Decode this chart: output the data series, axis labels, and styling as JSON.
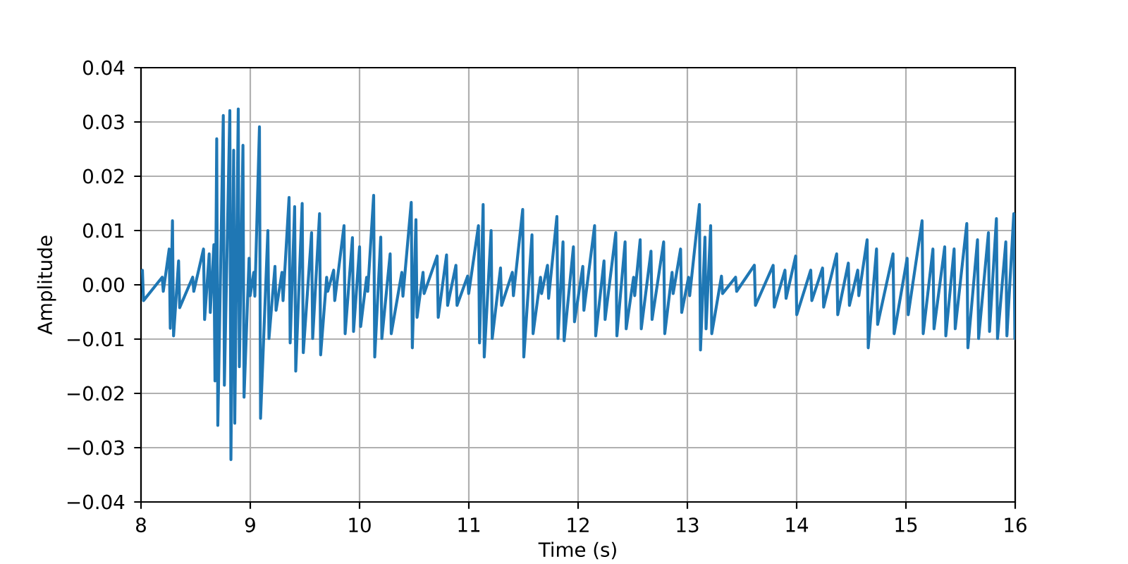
{
  "chart_data": {
    "type": "line",
    "xlabel": "Time (s)",
    "ylabel": "Amplitude",
    "color": "#1f77b4",
    "marker": "none",
    "line_style": "solid",
    "grid": true,
    "xlim": [
      8,
      16
    ],
    "ylim": [
      -0.04,
      0.04
    ],
    "xticks": [
      8,
      9,
      10,
      11,
      12,
      13,
      14,
      15,
      16
    ],
    "yticks": [
      {
        "value": -0.04,
        "label": "−0.04"
      },
      {
        "value": -0.03,
        "label": "−0.03"
      },
      {
        "value": -0.02,
        "label": "−0.02"
      },
      {
        "value": -0.01,
        "label": "−0.01"
      },
      {
        "value": 0,
        "label": "0.00"
      },
      {
        "value": 0.01,
        "label": "0.01"
      },
      {
        "value": 0.02,
        "label": "0.02"
      },
      {
        "value": 0.03,
        "label": "0.03"
      },
      {
        "value": 0.04,
        "label": "0.04"
      }
    ],
    "x": [
      8.013,
      8.023,
      8.194,
      8.204,
      8.258,
      8.268,
      8.288,
      8.298,
      8.344,
      8.354,
      8.473,
      8.483,
      8.572,
      8.582,
      8.624,
      8.634,
      8.667,
      8.677,
      8.693,
      8.703,
      8.753,
      8.763,
      8.813,
      8.823,
      8.848,
      8.858,
      8.89,
      8.9,
      8.933,
      8.943,
      8.989,
      8.999,
      9.032,
      9.042,
      9.084,
      9.094,
      9.161,
      9.171,
      9.226,
      9.236,
      9.29,
      9.3,
      9.355,
      9.365,
      9.406,
      9.416,
      9.475,
      9.485,
      9.561,
      9.571,
      9.634,
      9.644,
      9.699,
      9.709,
      9.763,
      9.773,
      9.858,
      9.868,
      9.935,
      9.945,
      10.0,
      10.01,
      10.065,
      10.075,
      10.129,
      10.139,
      10.194,
      10.204,
      10.28,
      10.29,
      10.387,
      10.397,
      10.473,
      10.483,
      10.516,
      10.526,
      10.581,
      10.591,
      10.71,
      10.72,
      10.796,
      10.806,
      10.882,
      10.892,
      10.989,
      10.999,
      11.088,
      11.098,
      11.131,
      11.141,
      11.204,
      11.214,
      11.29,
      11.3,
      11.398,
      11.408,
      11.493,
      11.503,
      11.578,
      11.588,
      11.656,
      11.666,
      11.72,
      11.73,
      11.806,
      11.816,
      11.862,
      11.872,
      11.957,
      11.967,
      12.043,
      12.053,
      12.151,
      12.161,
      12.237,
      12.247,
      12.345,
      12.355,
      12.43,
      12.44,
      12.508,
      12.518,
      12.568,
      12.578,
      12.667,
      12.677,
      12.783,
      12.793,
      12.86,
      12.87,
      12.938,
      12.948,
      13.011,
      13.021,
      13.11,
      13.12,
      13.161,
      13.171,
      13.213,
      13.223,
      13.312,
      13.322,
      13.441,
      13.451,
      13.613,
      13.623,
      13.785,
      13.795,
      13.893,
      13.903,
      13.991,
      14.001,
      14.129,
      14.139,
      14.237,
      14.247,
      14.366,
      14.376,
      14.473,
      14.483,
      14.559,
      14.569,
      14.645,
      14.655,
      14.731,
      14.741,
      14.882,
      14.892,
      15.011,
      15.021,
      15.148,
      15.158,
      15.247,
      15.257,
      15.355,
      15.365,
      15.441,
      15.451,
      15.557,
      15.567,
      15.655,
      15.665,
      15.755,
      15.765,
      15.828,
      15.838,
      15.914,
      15.924,
      15.987,
      15.997
    ],
    "values": [
      0.0027,
      -0.0029,
      0.0014,
      -0.0012,
      0.0066,
      -0.008,
      0.0118,
      -0.0094,
      0.0044,
      -0.0042,
      0.0014,
      -0.0012,
      0.0066,
      -0.0064,
      0.0057,
      -0.0051,
      0.0074,
      -0.0177,
      0.0269,
      -0.0259,
      0.0312,
      -0.0185,
      0.0321,
      -0.0322,
      0.0248,
      -0.0255,
      0.0324,
      -0.0151,
      0.0257,
      -0.0207,
      0.0049,
      -0.002,
      0.0023,
      -0.0021,
      0.0291,
      -0.0246,
      0.01,
      -0.0099,
      0.0034,
      -0.0047,
      0.0023,
      -0.0029,
      0.0161,
      -0.0107,
      0.0144,
      -0.0159,
      0.015,
      -0.0125,
      0.0096,
      -0.0099,
      0.0131,
      -0.0129,
      0.0014,
      -0.0012,
      0.0027,
      -0.0029,
      0.0109,
      -0.009,
      0.0087,
      -0.0086,
      0.007,
      -0.0077,
      0.0014,
      -0.0012,
      0.0165,
      -0.0133,
      0.0088,
      -0.0099,
      0.0057,
      -0.009,
      0.0023,
      -0.0021,
      0.0152,
      -0.0116,
      0.012,
      -0.006,
      0.0023,
      -0.0016,
      0.0053,
      -0.006,
      0.0055,
      -0.0038,
      0.0036,
      -0.0038,
      0.0016,
      -0.0016,
      0.0109,
      -0.0107,
      0.0148,
      -0.0133,
      0.01,
      -0.0099,
      0.0031,
      -0.0038,
      0.0023,
      -0.002,
      0.0139,
      -0.0133,
      0.0092,
      -0.009,
      0.0014,
      -0.0016,
      0.0036,
      -0.0025,
      0.0126,
      -0.0099,
      0.0079,
      -0.0103,
      0.007,
      -0.0068,
      0.0034,
      -0.0047,
      0.0109,
      -0.0094,
      0.0044,
      -0.0064,
      0.0096,
      -0.0094,
      0.0079,
      -0.0081,
      0.0014,
      -0.002,
      0.0083,
      -0.0081,
      0.0062,
      -0.0064,
      0.0079,
      -0.009,
      0.0023,
      -0.0016,
      0.0066,
      -0.0051,
      0.0014,
      -0.002,
      0.0148,
      -0.012,
      0.0088,
      -0.0081,
      0.0109,
      -0.009,
      0.0016,
      -0.0016,
      0.0014,
      -0.0012,
      0.0036,
      -0.0038,
      0.0036,
      -0.0041,
      0.0027,
      -0.0025,
      0.0053,
      -0.0055,
      0.0027,
      -0.0029,
      0.0031,
      -0.0041,
      0.0057,
      -0.0055,
      0.004,
      -0.0038,
      0.0027,
      -0.002,
      0.0083,
      -0.0116,
      0.0066,
      -0.0073,
      0.0057,
      -0.009,
      0.0049,
      -0.0055,
      0.0118,
      -0.009,
      0.0066,
      -0.0081,
      0.007,
      -0.0094,
      0.0066,
      -0.0081,
      0.0113,
      -0.0116,
      0.0083,
      -0.0099,
      0.0096,
      -0.0086,
      0.0122,
      -0.0099,
      0.0079,
      -0.0094,
      0.0131,
      -0.0099
    ]
  }
}
